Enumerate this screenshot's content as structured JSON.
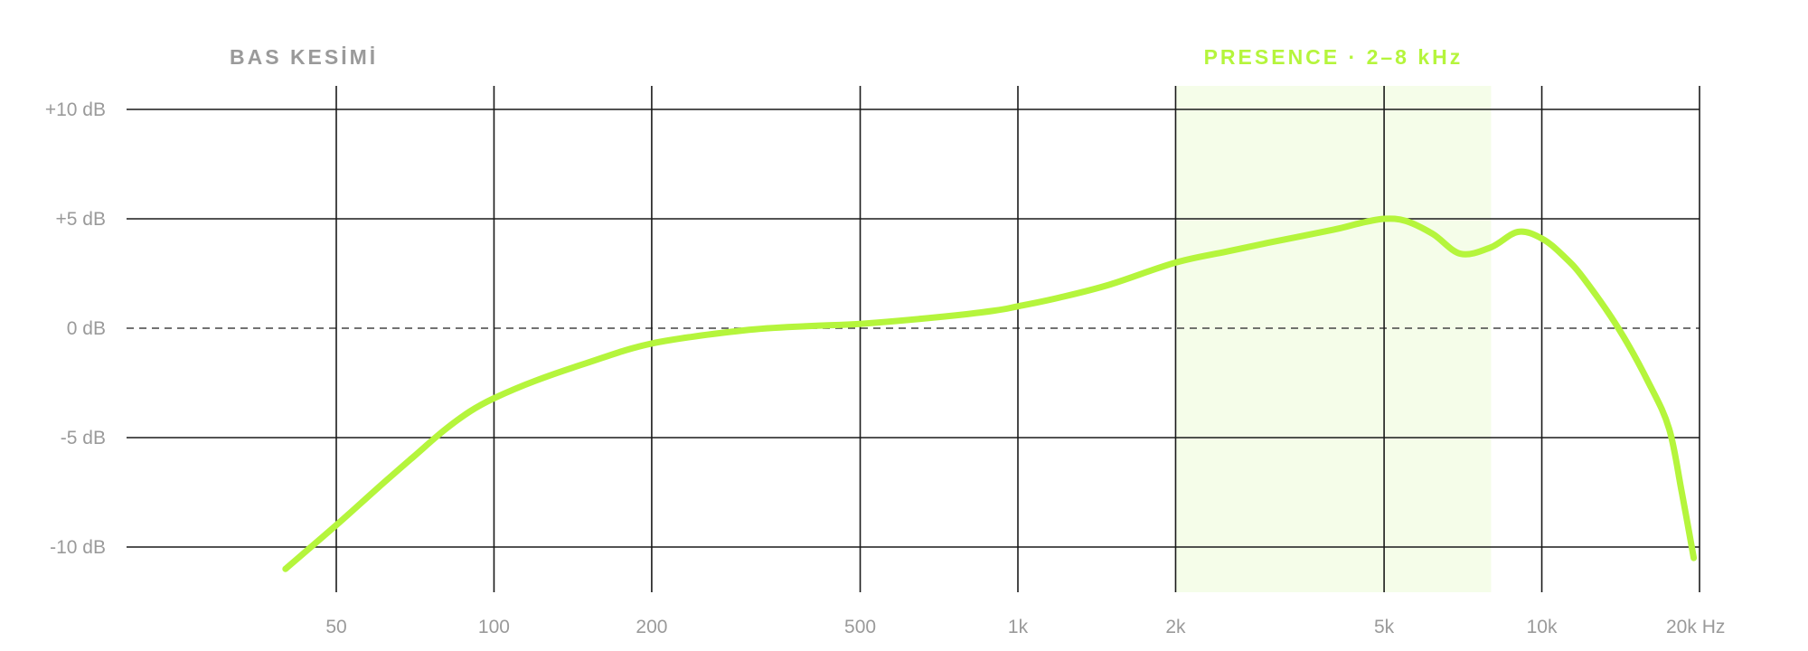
{
  "chart_data": {
    "type": "line",
    "title": "",
    "xlabel": "",
    "ylabel": "",
    "x_scale": "log",
    "xlim": [
      20,
      20000
    ],
    "ylim": [
      -12.5,
      12
    ],
    "x_ticks": [
      {
        "value": 50,
        "label": "50"
      },
      {
        "value": 100,
        "label": "100"
      },
      {
        "value": 200,
        "label": "200"
      },
      {
        "value": 500,
        "label": "500"
      },
      {
        "value": 1000,
        "label": "1k"
      },
      {
        "value": 2000,
        "label": "2k"
      },
      {
        "value": 5000,
        "label": "5k"
      },
      {
        "value": 10000,
        "label": "10k"
      },
      {
        "value": 20000,
        "label": "20k Hz"
      }
    ],
    "y_ticks": [
      {
        "value": 10,
        "label": "+10 dB"
      },
      {
        "value": 5,
        "label": "+5 dB"
      },
      {
        "value": 0,
        "label": "0 dB"
      },
      {
        "value": -5,
        "label": "-5 dB"
      },
      {
        "value": -10,
        "label": "-10 dB"
      }
    ],
    "grid": true,
    "zero_line": "dashed",
    "annotations": [
      {
        "text": "BAS KESİMİ",
        "color": "#9a9a9a"
      },
      {
        "text": "PRESENCE · 2–8 kHz",
        "color": "#b5f53c"
      }
    ],
    "highlight_band": {
      "x_start": 2000,
      "x_end": 8000,
      "color": "#f5fde9"
    },
    "series": [
      {
        "color": "#b5f53c",
        "points": [
          [
            40,
            -11.0
          ],
          [
            50,
            -9.0
          ],
          [
            60,
            -7.3
          ],
          [
            70,
            -5.9
          ],
          [
            80,
            -4.7
          ],
          [
            90,
            -3.8
          ],
          [
            100,
            -3.2
          ],
          [
            120,
            -2.4
          ],
          [
            150,
            -1.6
          ],
          [
            200,
            -0.7
          ],
          [
            300,
            -0.1
          ],
          [
            400,
            0.1
          ],
          [
            500,
            0.2
          ],
          [
            700,
            0.5
          ],
          [
            900,
            0.8
          ],
          [
            1000,
            1.0
          ],
          [
            1200,
            1.4
          ],
          [
            1500,
            2.0
          ],
          [
            2000,
            3.0
          ],
          [
            2500,
            3.5
          ],
          [
            3000,
            3.9
          ],
          [
            4000,
            4.5
          ],
          [
            4500,
            4.8
          ],
          [
            5000,
            5.0
          ],
          [
            5500,
            4.9
          ],
          [
            6200,
            4.3
          ],
          [
            7000,
            3.4
          ],
          [
            8000,
            3.7
          ],
          [
            9000,
            4.4
          ],
          [
            10000,
            4.1
          ],
          [
            11000,
            3.3
          ],
          [
            12000,
            2.3
          ],
          [
            14000,
            0.0
          ],
          [
            16000,
            -2.5
          ],
          [
            17500,
            -4.6
          ],
          [
            18500,
            -7.5
          ],
          [
            19500,
            -10.5
          ]
        ]
      }
    ]
  }
}
